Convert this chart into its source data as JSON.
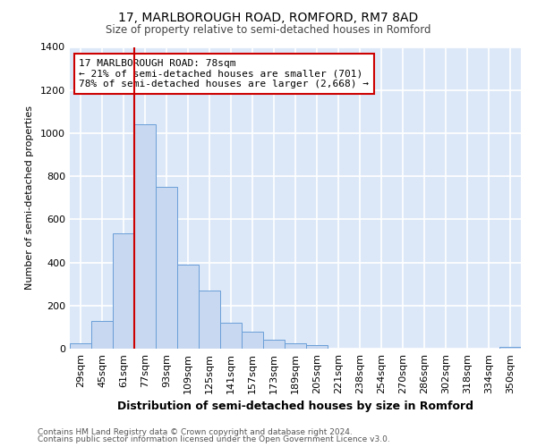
{
  "title": "17, MARLBOROUGH ROAD, ROMFORD, RM7 8AD",
  "subtitle": "Size of property relative to semi-detached houses in Romford",
  "xlabel": "Distribution of semi-detached houses by size in Romford",
  "ylabel": "Number of semi-detached properties",
  "footnote1": "Contains HM Land Registry data © Crown copyright and database right 2024.",
  "footnote2": "Contains public sector information licensed under the Open Government Licence v3.0.",
  "bar_labels": [
    "29sqm",
    "45sqm",
    "61sqm",
    "77sqm",
    "93sqm",
    "109sqm",
    "125sqm",
    "141sqm",
    "157sqm",
    "173sqm",
    "189sqm",
    "205sqm",
    "221sqm",
    "238sqm",
    "254sqm",
    "270sqm",
    "286sqm",
    "302sqm",
    "318sqm",
    "334sqm",
    "350sqm"
  ],
  "bar_values": [
    25,
    130,
    535,
    1040,
    750,
    390,
    270,
    120,
    80,
    40,
    25,
    15,
    0,
    0,
    0,
    0,
    0,
    0,
    0,
    0,
    10
  ],
  "bar_color": "#c8d8f0",
  "bar_edge_color": "#6a9fd8",
  "vline_bar_index": 3,
  "annotation_title": "17 MARLBOROUGH ROAD: 78sqm",
  "annotation_line1": "← 21% of semi-detached houses are smaller (701)",
  "annotation_line2": "78% of semi-detached houses are larger (2,668) →",
  "ylim": [
    0,
    1400
  ],
  "yticks": [
    0,
    200,
    400,
    600,
    800,
    1000,
    1200,
    1400
  ],
  "plot_bg_color": "#dce8f8",
  "fig_bg_color": "#ffffff",
  "grid_color": "#ffffff",
  "annotation_box_color": "#ffffff",
  "annotation_box_edge": "#cc0000",
  "vline_color": "#cc0000"
}
